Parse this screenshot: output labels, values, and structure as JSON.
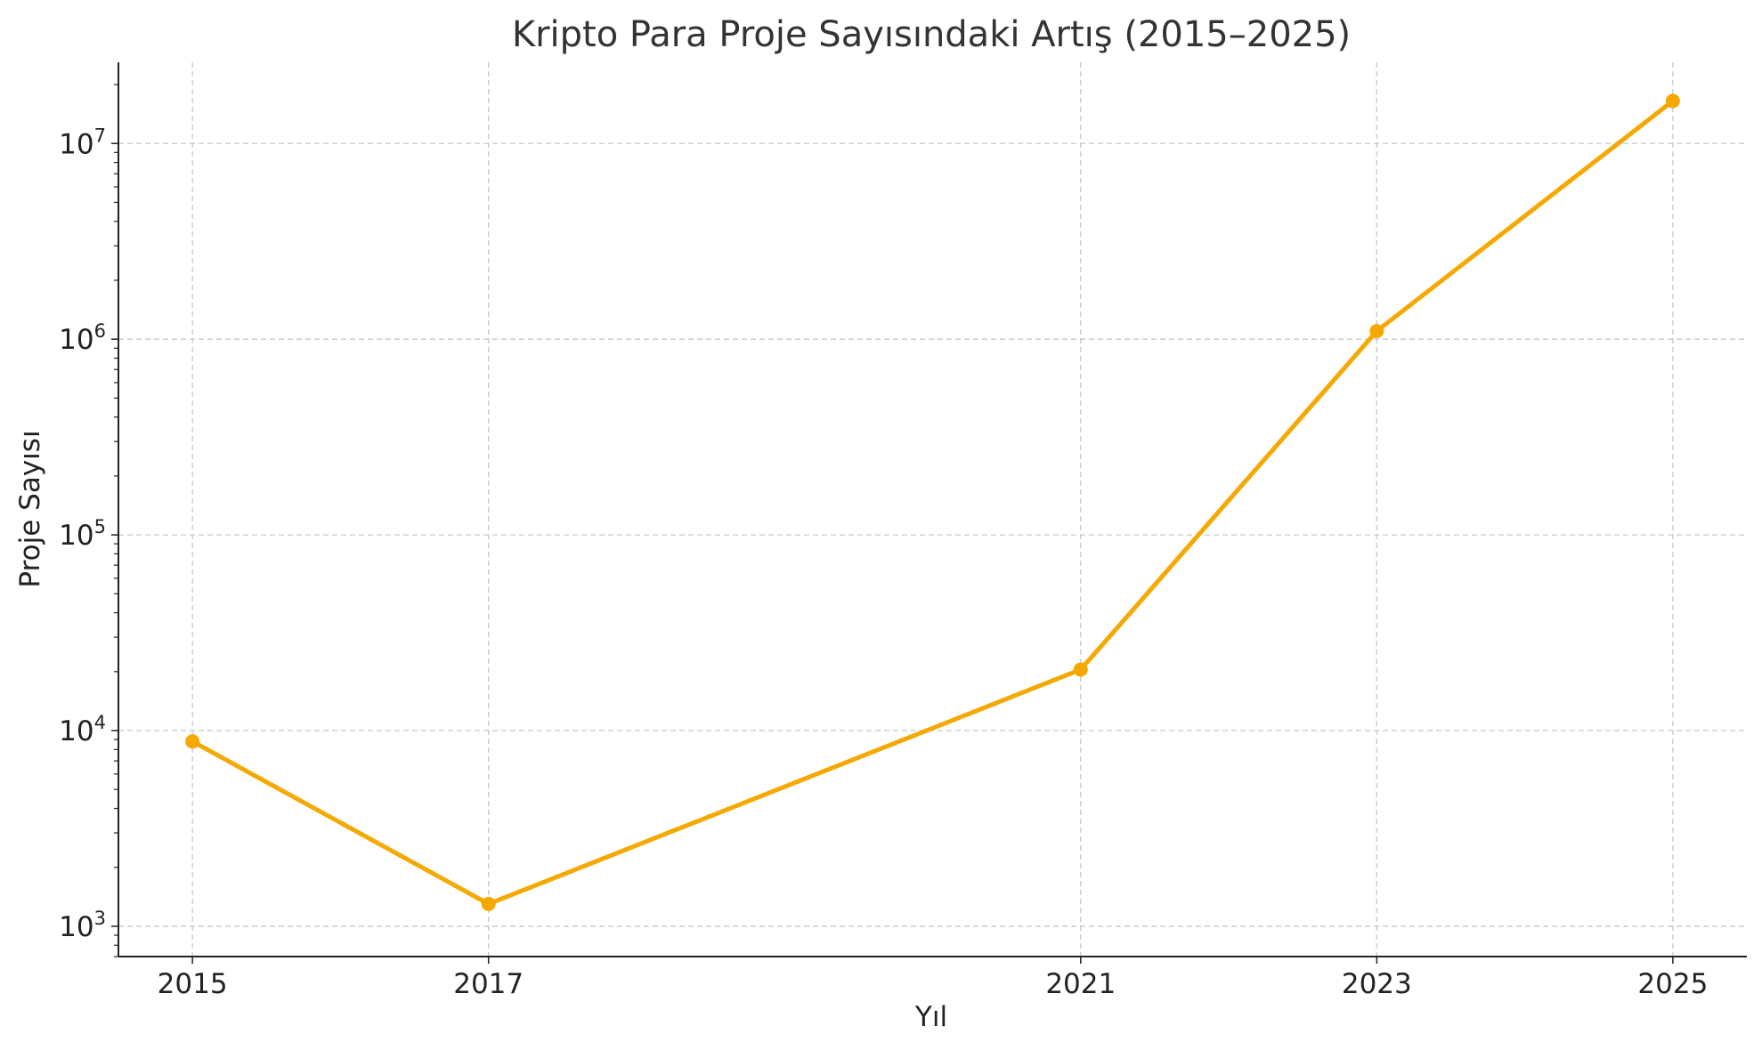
{
  "chart_data": {
    "type": "line",
    "title": "Kripto Para Proje Sayısındaki Artış (2015–2025)",
    "xlabel": "Yıl",
    "ylabel": "Proje Sayısı",
    "yscale": "log",
    "ylim": [
      700,
      26000000
    ],
    "xlim": [
      2014.5,
      2025.5
    ],
    "x": [
      2015,
      2017,
      2021,
      2023,
      2025
    ],
    "x_ticks": [
      "2015",
      "2017",
      "2021",
      "2023",
      "2025"
    ],
    "y_ticks": [
      {
        "value": 1000,
        "base": "10",
        "exp": "3"
      },
      {
        "value": 10000,
        "base": "10",
        "exp": "4"
      },
      {
        "value": 100000,
        "base": "10",
        "exp": "5"
      },
      {
        "value": 1000000,
        "base": "10",
        "exp": "6"
      },
      {
        "value": 10000000,
        "base": "10",
        "exp": "7"
      }
    ],
    "series": [
      {
        "values": [
          8800,
          1300,
          20500,
          1100000,
          16500000
        ],
        "color": "#f5a800"
      }
    ],
    "grid": true,
    "legend": "none"
  }
}
